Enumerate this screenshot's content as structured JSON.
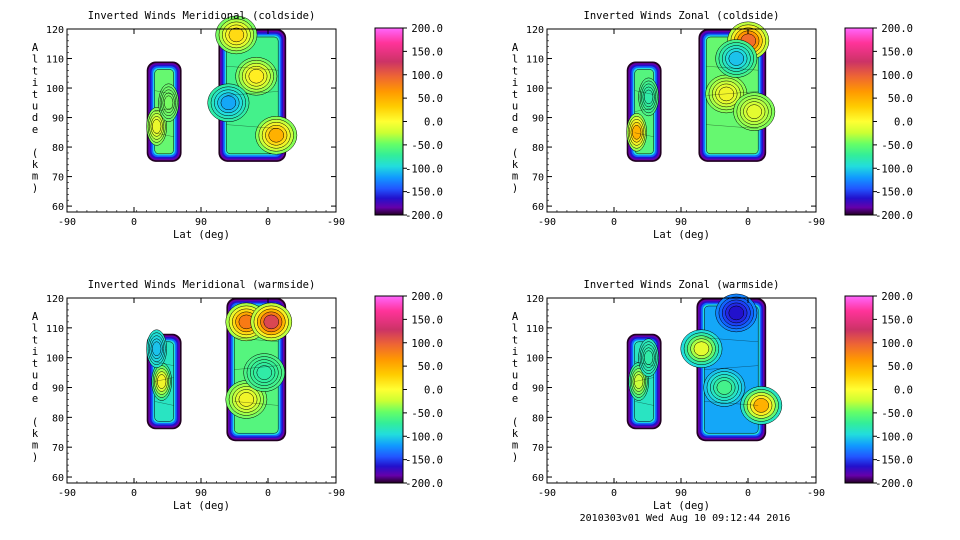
{
  "footer": "2010303v01 Wed Aug 10 09:12:44 2016",
  "chart_data": [
    {
      "type": "contour",
      "title": "Inverted Winds Meridional (coldside)",
      "xlabel": "Lat (deg)",
      "ylabel": "Altitude (km)",
      "xticks": [
        "-90",
        "0",
        "90",
        "0",
        "-90"
      ],
      "yticks": [
        "60",
        "70",
        "80",
        "90",
        "100",
        "110",
        "120"
      ],
      "ylim": [
        58,
        120
      ],
      "colorbar_labels": [
        "200.0",
        "150.0",
        "100.0",
        "50.0",
        "0.0",
        "-50.0",
        "-100.0",
        "-150.0",
        "-200.0"
      ],
      "colorbar_range": [
        -200,
        200
      ],
      "regions": [
        {
          "x": [
            -10,
            25
          ],
          "y": [
            75,
            109
          ],
          "level": -10,
          "cells": [
            {
              "x": 0,
              "y": 87,
              "value": 35
            },
            {
              "x": 12,
              "y": 95,
              "value": -5
            }
          ]
        },
        {
          "x": [
            62,
            130
          ],
          "y": [
            75,
            120
          ],
          "level": -20,
          "cells": [
            {
              "x": 100,
              "y": 104,
              "value": 50
            },
            {
              "x": 120,
              "y": 84,
              "value": 80
            },
            {
              "x": 80,
              "y": 118,
              "value": 60
            },
            {
              "x": 72,
              "y": 95,
              "value": -70
            }
          ]
        }
      ]
    },
    {
      "type": "contour",
      "title": "Inverted Winds Zonal (coldside)",
      "xlabel": "Lat (deg)",
      "ylabel": "Altitude (km)",
      "xticks": [
        "-90",
        "0",
        "90",
        "0",
        "-90"
      ],
      "yticks": [
        "60",
        "70",
        "80",
        "90",
        "100",
        "110",
        "120"
      ],
      "ylim": [
        58,
        120
      ],
      "colorbar_labels": [
        "200.0",
        "150.0",
        "100.0",
        "50.0",
        "0.0",
        "-50.0",
        "-100.0",
        "-150.0",
        "-200.0"
      ],
      "colorbar_range": [
        -200,
        200
      ],
      "regions": [
        {
          "x": [
            -10,
            25
          ],
          "y": [
            75,
            109
          ],
          "level": -15,
          "cells": [
            {
              "x": 0,
              "y": 85,
              "value": 80
            },
            {
              "x": 12,
              "y": 97,
              "value": -30
            }
          ]
        },
        {
          "x": [
            62,
            130
          ],
          "y": [
            75,
            120
          ],
          "level": -10,
          "cells": [
            {
              "x": 112,
              "y": 116,
              "value": 120
            },
            {
              "x": 90,
              "y": 98,
              "value": 40
            },
            {
              "x": 118,
              "y": 92,
              "value": 30
            },
            {
              "x": 100,
              "y": 110,
              "value": -60
            }
          ]
        }
      ]
    },
    {
      "type": "contour",
      "title": "Inverted Winds Meridional (warmside)",
      "xlabel": "Lat (deg)",
      "ylabel": "Altitude (km)",
      "xticks": [
        "-90",
        "0",
        "90",
        "0",
        "-90"
      ],
      "yticks": [
        "60",
        "70",
        "80",
        "90",
        "100",
        "110",
        "120"
      ],
      "ylim": [
        58,
        120
      ],
      "colorbar_labels": [
        "200.0",
        "150.0",
        "100.0",
        "50.0",
        "0.0",
        "-50.0",
        "-100.0",
        "-150.0",
        "-200.0"
      ],
      "colorbar_range": [
        -200,
        200
      ],
      "regions": [
        {
          "x": [
            -10,
            25
          ],
          "y": [
            76,
            108
          ],
          "level": -40,
          "cells": [
            {
              "x": 5,
              "y": 92,
              "value": 40
            },
            {
              "x": 0,
              "y": 103,
              "value": -60
            }
          ]
        },
        {
          "x": [
            70,
            130
          ],
          "y": [
            72,
            120
          ],
          "level": -15,
          "cells": [
            {
              "x": 90,
              "y": 112,
              "value": 110
            },
            {
              "x": 115,
              "y": 112,
              "value": 140
            },
            {
              "x": 90,
              "y": 86,
              "value": 40
            },
            {
              "x": 108,
              "y": 95,
              "value": -30
            }
          ]
        }
      ]
    },
    {
      "type": "contour",
      "title": "Inverted Winds Zonal (warmside)",
      "xlabel": "Lat (deg)",
      "ylabel": "Altitude (km)",
      "xticks": [
        "-90",
        "0",
        "90",
        "0",
        "-90"
      ],
      "yticks": [
        "60",
        "70",
        "80",
        "90",
        "100",
        "110",
        "120"
      ],
      "ylim": [
        58,
        120
      ],
      "colorbar_labels": [
        "200.0",
        "150.0",
        "100.0",
        "50.0",
        "0.0",
        "-50.0",
        "-100.0",
        "-150.0",
        "-200.0"
      ],
      "colorbar_range": [
        -200,
        200
      ],
      "regions": [
        {
          "x": [
            -10,
            25
          ],
          "y": [
            76,
            108
          ],
          "level": -40,
          "cells": [
            {
              "x": 2,
              "y": 92,
              "value": 20
            },
            {
              "x": 12,
              "y": 100,
              "value": -30
            }
          ]
        },
        {
          "x": [
            60,
            130
          ],
          "y": [
            72,
            120
          ],
          "level": -70,
          "cells": [
            {
              "x": 125,
              "y": 84,
              "value": 80
            },
            {
              "x": 65,
              "y": 103,
              "value": 30
            },
            {
              "x": 100,
              "y": 115,
              "value": -150
            },
            {
              "x": 88,
              "y": 90,
              "value": -20
            }
          ]
        }
      ]
    }
  ]
}
